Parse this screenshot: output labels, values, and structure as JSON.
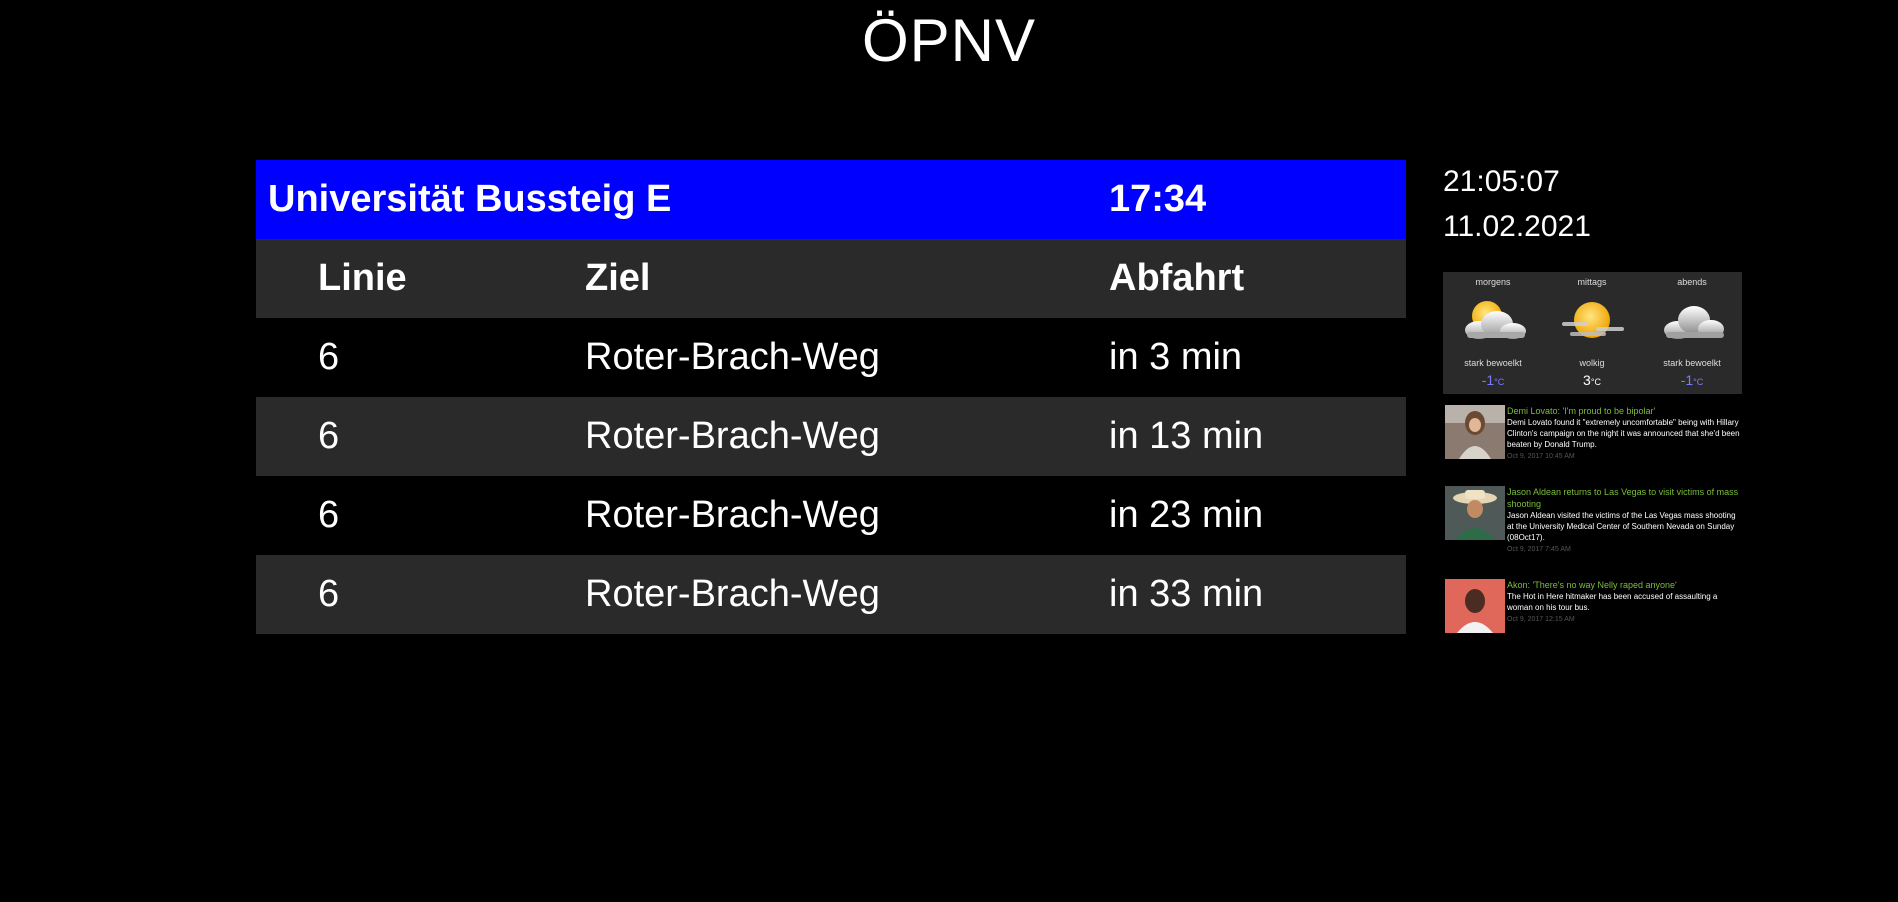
{
  "title": "ÖPNV",
  "board": {
    "station": "Universität Bussteig E",
    "time": "17:34",
    "columns": [
      "Linie",
      "Ziel",
      "Abfahrt"
    ],
    "rows": [
      {
        "line": "6",
        "destination": "Roter-Brach-Weg",
        "departure": "in 3 min"
      },
      {
        "line": "6",
        "destination": "Roter-Brach-Weg",
        "departure": "in 13 min"
      },
      {
        "line": "6",
        "destination": "Roter-Brach-Weg",
        "departure": "in 23 min"
      },
      {
        "line": "6",
        "destination": "Roter-Brach-Weg",
        "departure": "in 33 min"
      }
    ]
  },
  "clock": {
    "time": "21:05:07",
    "date": "11.02.2021"
  },
  "weather": [
    {
      "label": "morgens",
      "icon": "sun-behind-cloud-icon",
      "description": "stark bewoelkt",
      "temp": "-1",
      "unit": "°C",
      "temp_color": "#7b7bff"
    },
    {
      "label": "mittags",
      "icon": "sun-with-haze-icon",
      "description": "wolkig",
      "temp": "3",
      "unit": "°C",
      "temp_color": "#ffffff"
    },
    {
      "label": "abends",
      "icon": "cloud-icon",
      "description": "stark bewoelkt",
      "temp": "-1",
      "unit": "°C",
      "temp_color": "#7b7bff"
    }
  ],
  "news": [
    {
      "title": "Demi Lovato: 'I'm proud to be bipolar'",
      "text": "Demi Lovato found it \"extremely uncomfortable\" being with Hillary Clinton's campaign on the night it was announced that she'd been beaten by Donald Trump.",
      "date": "Oct 9, 2017 10:45 AM"
    },
    {
      "title": "Jason Aldean returns to Las Vegas to visit victims of mass shooting",
      "text": "Jason Aldean visited the victims of the Las Vegas mass shooting at the University Medical Center of Southern Nevada on Sunday (08Oct17).",
      "date": "Oct 9, 2017 7:45 AM"
    },
    {
      "title": "Akon: 'There's no way Nelly raped anyone'",
      "text": "The Hot in Here hitmaker has been accused of assaulting a woman on his tour bus.",
      "date": "Oct 9, 2017 12:15 AM"
    }
  ],
  "colors": {
    "header_blue": "#0000ff",
    "row_grey": "#2a2a2a",
    "news_title_green": "#7cbd3b"
  }
}
